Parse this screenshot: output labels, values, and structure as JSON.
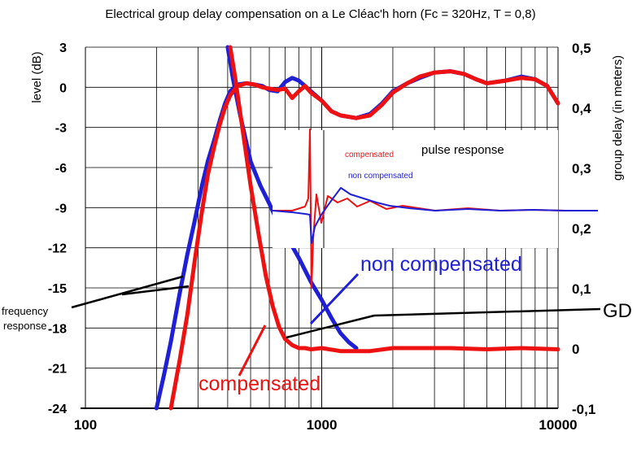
{
  "chart_data": {
    "type": "line",
    "title": "Electrical group delay compensation on a  Le Cléac'h horn (Fc = 320Hz, T = 0,8)",
    "xlabel": "",
    "ylabel": "level (dB)",
    "y2label": "group delay (in meters)",
    "x_scale": "log",
    "xlim": [
      100,
      10000
    ],
    "ylim": [
      -24,
      3
    ],
    "y2lim": [
      -0.1,
      0.5
    ],
    "x_ticks": [
      100,
      1000,
      10000
    ],
    "x_tick_labels": [
      "100",
      "1000",
      "10000"
    ],
    "y_ticks": [
      3,
      0,
      -3,
      -6,
      -9,
      -12,
      -15,
      -18,
      -21,
      -24
    ],
    "y_tick_labels": [
      "3",
      "0",
      "-3",
      "-6",
      "-9",
      "-12",
      "-15",
      "-18",
      "-21",
      "-24"
    ],
    "y2_ticks": [
      0.5,
      0.4,
      0.3,
      0.2,
      0.1,
      0,
      -0.1
    ],
    "y2_tick_labels": [
      "0,5",
      "0,4",
      "0,3",
      "0,2",
      "0,1",
      "0",
      "-0,1"
    ],
    "grid": true,
    "colors": {
      "non_compensated": "#1f1fd6",
      "compensated": "#ee1111",
      "annotation": "#000000"
    },
    "series": [
      {
        "name": "non compensated",
        "color": "#1f1fd6",
        "kind": "frequency response",
        "axis": "left",
        "x": [
          200,
          215,
          230,
          250,
          270,
          290,
          310,
          330,
          350,
          370,
          390,
          410,
          440,
          480,
          520,
          560,
          600,
          650,
          700,
          750,
          800,
          850,
          900,
          1000,
          1100,
          1200,
          1400,
          1600,
          1800,
          2000,
          2300,
          2600,
          3000,
          3500,
          4000,
          4500,
          5000,
          6000,
          7000,
          8000,
          9000,
          10000
        ],
        "y": [
          -24,
          -21.5,
          -19,
          -15.5,
          -12.5,
          -10,
          -7.5,
          -5.5,
          -4,
          -2.5,
          -1.2,
          -0.3,
          0.2,
          0.3,
          0.2,
          0.1,
          -0.2,
          -0.3,
          0.4,
          0.7,
          0.5,
          0.1,
          -0.3,
          -1.0,
          -1.8,
          -2.1,
          -2.3,
          -2.0,
          -1.2,
          -0.3,
          0.3,
          0.7,
          1.1,
          1.2,
          1.0,
          0.6,
          0.3,
          0.5,
          0.8,
          0.6,
          0.1,
          -1.2
        ]
      },
      {
        "name": "compensated",
        "color": "#ee1111",
        "kind": "frequency response",
        "axis": "left",
        "x": [
          230,
          250,
          270,
          290,
          310,
          330,
          350,
          370,
          390,
          410,
          440,
          480,
          520,
          560,
          600,
          650,
          700,
          750,
          800,
          850,
          900,
          1000,
          1100,
          1200,
          1400,
          1600,
          1800,
          2000,
          2300,
          2600,
          3000,
          3500,
          4000,
          4500,
          5000,
          6000,
          7000,
          8000,
          9000,
          10000
        ],
        "y": [
          -24,
          -20.5,
          -17,
          -13,
          -9.5,
          -6.5,
          -4.5,
          -2.8,
          -1.5,
          -0.6,
          0.1,
          0.3,
          0.2,
          0.0,
          -0.1,
          -0.2,
          -0.1,
          -0.8,
          -0.3,
          0.1,
          -0.4,
          -1.0,
          -1.8,
          -2.1,
          -2.3,
          -2.1,
          -1.3,
          -0.4,
          0.3,
          0.8,
          1.1,
          1.2,
          1.0,
          0.6,
          0.3,
          0.5,
          0.7,
          0.6,
          0.1,
          -1.2
        ]
      },
      {
        "name": "non compensated",
        "color": "#1f1fd6",
        "kind": "group delay",
        "axis": "right",
        "x": [
          400,
          420,
          450,
          500,
          550,
          600,
          650,
          700,
          800,
          900,
          1000,
          1100,
          1200,
          1300,
          1400
        ],
        "y": [
          0.5,
          0.45,
          0.39,
          0.31,
          0.27,
          0.24,
          0.21,
          0.19,
          0.15,
          0.11,
          0.08,
          0.05,
          0.025,
          0.01,
          0.0
        ]
      },
      {
        "name": "compensated",
        "color": "#ee1111",
        "kind": "group delay",
        "axis": "right",
        "x": [
          410,
          430,
          460,
          500,
          540,
          580,
          620,
          660,
          700,
          750,
          800,
          850,
          900,
          1000,
          1200,
          1400,
          1600,
          2000,
          2600,
          3500,
          5000,
          7000,
          10000
        ],
        "y": [
          0.5,
          0.45,
          0.37,
          0.27,
          0.19,
          0.12,
          0.07,
          0.035,
          0.015,
          0.005,
          0.0,
          0.0,
          -0.002,
          0.0,
          -0.005,
          -0.005,
          -0.005,
          0.0,
          0.0,
          0.0,
          -0.002,
          0.0,
          -0.002
        ]
      }
    ],
    "inset": {
      "title": "pulse response",
      "series": [
        {
          "name": "compensated",
          "color": "#ee1111",
          "x": [
            0,
            0.6,
            1.0,
            1.1,
            1.15,
            1.2,
            1.25,
            1.35,
            1.5,
            1.7,
            2.0,
            2.3,
            2.6,
            3.0,
            3.5,
            4.0,
            5.0,
            6.0,
            7.0,
            8.0,
            9.0,
            10.0
          ],
          "y": [
            0.0,
            0.0,
            0.05,
            0.15,
            1.0,
            -0.95,
            -0.35,
            0.2,
            -0.15,
            0.18,
            0.1,
            0.15,
            0.05,
            0.12,
            0.02,
            0.06,
            0.0,
            0.03,
            0.0,
            0.01,
            0.0,
            0.0
          ]
        },
        {
          "name": "non compensated",
          "color": "#1f1fd6",
          "x": [
            0,
            0.6,
            1.0,
            1.15,
            1.2,
            1.3,
            1.5,
            1.8,
            2.1,
            2.4,
            2.8,
            3.2,
            3.6,
            4.2,
            5.0,
            6.0,
            7.0,
            8.0,
            9.0,
            10.0
          ],
          "y": [
            0.0,
            -0.02,
            -0.04,
            -0.05,
            -0.4,
            -0.2,
            -0.05,
            0.12,
            0.28,
            0.2,
            0.15,
            0.1,
            0.06,
            0.03,
            0.0,
            0.02,
            0.0,
            0.01,
            0.0,
            0.0
          ]
        }
      ],
      "labels": {
        "compensated": "compensated",
        "non_compensated": "non compensated"
      }
    },
    "annotations": {
      "non_compensated": "non compensated",
      "compensated": "compensated",
      "frequency_response": "frequency\nresponse",
      "gd": "GD"
    }
  }
}
